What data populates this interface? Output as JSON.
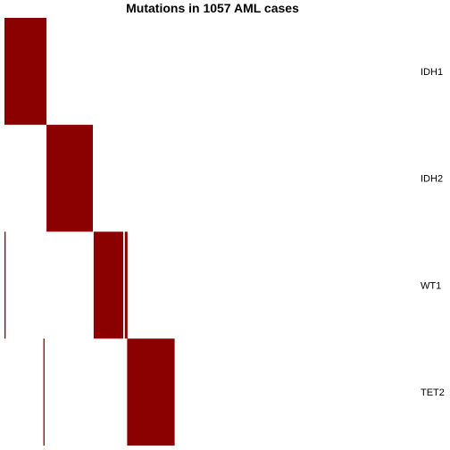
{
  "chart_data": {
    "type": "heatmap",
    "title": "Mutations in 1057 AML cases",
    "n_cases": 1057,
    "rows": [
      "IDH1",
      "IDH2",
      "WT1",
      "TET2"
    ],
    "colors": {
      "mutated": "#8B0000",
      "background": "#FFFFFF"
    },
    "mutated_case_ranges": {
      "IDH1": [
        [
          1,
          108
        ]
      ],
      "IDH2": [
        [
          109,
          227
        ]
      ],
      "WT1": [
        [
          1,
          3
        ],
        [
          230,
          305
        ],
        [
          310,
          316
        ]
      ],
      "TET2": [
        [
          101,
          103
        ],
        [
          316,
          437
        ]
      ]
    },
    "xlabel": "",
    "ylabel": ""
  }
}
